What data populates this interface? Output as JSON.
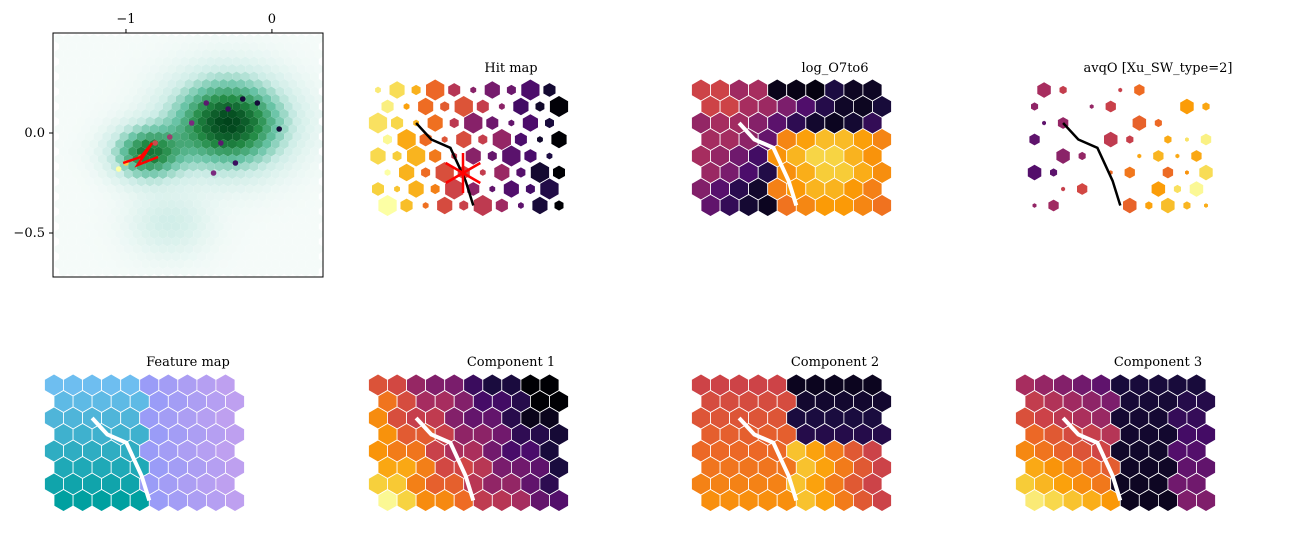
{
  "figure": {
    "background": "#ffffff"
  },
  "chart_data": [
    {
      "type": "heatmap",
      "name": "projection-hexbin",
      "x_ticks": [
        {
          "value": -1,
          "label": "−1"
        },
        {
          "value": 0,
          "label": "0"
        }
      ],
      "y_ticks": [
        {
          "value": 0.0,
          "label": "0.0"
        },
        {
          "value": -0.5,
          "label": "−0.5"
        }
      ],
      "xlim": [
        -1.5,
        0.35
      ],
      "ylim": [
        -0.72,
        0.5
      ],
      "colormap": [
        "#f5fbf9",
        "#ccece6",
        "#66c2a4",
        "#238b45",
        "#00441b"
      ],
      "overlay_points": [
        {
          "x": -0.45,
          "y": 0.15,
          "color": "#5b1a6e"
        },
        {
          "x": -0.3,
          "y": 0.12,
          "color": "#3b0f5e"
        },
        {
          "x": -0.2,
          "y": 0.17,
          "color": "#160b39"
        },
        {
          "x": -0.1,
          "y": 0.15,
          "color": "#160b39"
        },
        {
          "x": 0.05,
          "y": 0.02,
          "color": "#160b39"
        },
        {
          "x": -0.55,
          "y": 0.05,
          "color": "#7b2a7e"
        },
        {
          "x": -0.7,
          "y": -0.02,
          "color": "#9c3f6e"
        },
        {
          "x": -0.8,
          "y": -0.05,
          "color": "#c94c4c"
        },
        {
          "x": -0.9,
          "y": -0.12,
          "color": "#e7692f"
        },
        {
          "x": -1.0,
          "y": -0.15,
          "color": "#fcce45"
        },
        {
          "x": -1.05,
          "y": -0.18,
          "color": "#fcffa4"
        },
        {
          "x": -0.35,
          "y": -0.05,
          "color": "#5b1a6e"
        },
        {
          "x": -0.25,
          "y": -0.15,
          "color": "#3b0f5e"
        },
        {
          "x": -0.4,
          "y": -0.2,
          "color": "#7b2a7e"
        }
      ],
      "trajectory": [
        {
          "x": -1.02,
          "y": -0.15
        },
        {
          "x": -0.9,
          "y": -0.12
        },
        {
          "x": -0.82,
          "y": -0.05
        },
        {
          "x": -0.92,
          "y": -0.16
        },
        {
          "x": -0.78,
          "y": -0.12
        }
      ]
    },
    {
      "type": "heatmap",
      "title": "Hit map",
      "colormap": "inferno",
      "rows": 8,
      "cols": 10,
      "value_kind": "gradient-hits"
    },
    {
      "type": "heatmap",
      "title": "log_O7to6",
      "colormap": "inferno",
      "rows": 8,
      "cols": 10,
      "value_kind": "log_O7to6"
    },
    {
      "type": "heatmap",
      "title": "avqO [Xu_SW_type=2]",
      "colormap": "inferno",
      "rows": 8,
      "cols": 10,
      "value_kind": "sparse"
    },
    {
      "type": "heatmap",
      "title": "Feature map",
      "colormap": "feature",
      "rows": 8,
      "cols": 10,
      "value_kind": "feature"
    },
    {
      "type": "heatmap",
      "title": "Component 1",
      "colormap": "inferno",
      "rows": 8,
      "cols": 10,
      "value_kind": "comp1"
    },
    {
      "type": "heatmap",
      "title": "Component 2",
      "colormap": "inferno",
      "rows": 8,
      "cols": 10,
      "value_kind": "comp2"
    },
    {
      "type": "heatmap",
      "title": "Component 3",
      "colormap": "inferno",
      "rows": 8,
      "cols": 10,
      "value_kind": "comp3"
    }
  ],
  "colors": {
    "trajectory": "#ff0000",
    "boundary": "#000000",
    "frame": "#000000"
  }
}
